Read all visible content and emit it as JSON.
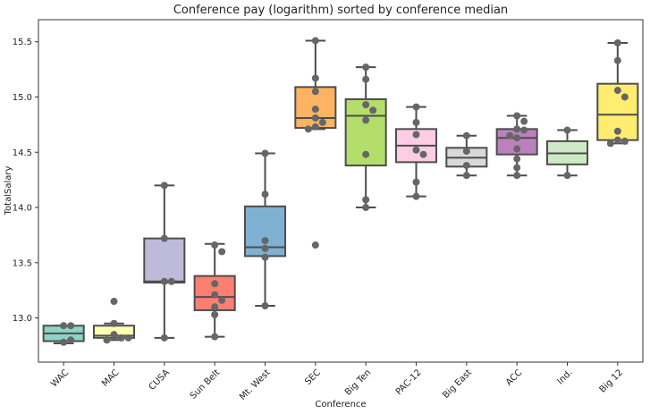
{
  "chart_data": {
    "type": "box",
    "title": "Conference pay (logarithm) sorted by conference median",
    "xlabel": "Conference",
    "ylabel": "TotalSalary",
    "ylim": [
      12.6,
      15.7
    ],
    "yticks": [
      13.0,
      13.5,
      14.0,
      14.5,
      15.0,
      15.5
    ],
    "ytick_labels": [
      "13.0",
      "13.5",
      "14.0",
      "14.5",
      "15.0",
      "15.5"
    ],
    "grid": false,
    "categories": [
      "WAC",
      "MAC",
      "CUSA",
      "Sun Belt",
      "Mt. West",
      "SEC",
      "Big Ten",
      "PAC-12",
      "Big East",
      "ACC",
      "Ind.",
      "Big 12"
    ],
    "boxes": [
      {
        "category": "WAC",
        "color": "#8dd3c7",
        "q1": 12.79,
        "median": 12.86,
        "q3": 12.93,
        "whisker_low": 12.77,
        "whisker_high": 12.93,
        "outliers": [],
        "points": [
          12.93,
          12.93,
          12.78,
          12.8
        ]
      },
      {
        "category": "MAC",
        "color": "#ffffb3",
        "q1": 12.82,
        "median": 12.84,
        "q3": 12.93,
        "whisker_low": 12.8,
        "whisker_high": 12.95,
        "outliers": [
          13.15
        ],
        "points": [
          12.95,
          12.85,
          12.82,
          12.8,
          12.82,
          13.15
        ]
      },
      {
        "category": "CUSA",
        "color": "#bebada",
        "q1": 13.32,
        "median": 13.33,
        "q3": 13.72,
        "whisker_low": 12.82,
        "whisker_high": 14.2,
        "outliers": [],
        "points": [
          14.2,
          13.72,
          13.33,
          13.33,
          12.82
        ]
      },
      {
        "category": "Sun Belt",
        "color": "#fb8072",
        "q1": 13.07,
        "median": 13.19,
        "q3": 13.38,
        "whisker_low": 12.83,
        "whisker_high": 13.67,
        "outliers": [],
        "points": [
          13.66,
          13.6,
          13.31,
          13.21,
          13.16,
          13.1,
          13.03,
          12.83
        ]
      },
      {
        "category": "Mt. West",
        "color": "#80b1d3",
        "q1": 13.56,
        "median": 13.64,
        "q3": 14.01,
        "whisker_low": 13.11,
        "whisker_high": 14.49,
        "outliers": [],
        "points": [
          14.49,
          14.12,
          13.7,
          13.63,
          13.55,
          13.11
        ]
      },
      {
        "category": "SEC",
        "color": "#fdb462",
        "q1": 14.72,
        "median": 14.81,
        "q3": 15.09,
        "whisker_low": 14.71,
        "whisker_high": 15.51,
        "outliers": [
          13.66
        ],
        "points": [
          15.51,
          15.17,
          15.05,
          14.89,
          14.81,
          14.77,
          14.73,
          14.71,
          13.66
        ]
      },
      {
        "category": "Big Ten",
        "color": "#b3de69",
        "q1": 14.38,
        "median": 14.83,
        "q3": 14.98,
        "whisker_low": 14.0,
        "whisker_high": 15.27,
        "outliers": [],
        "points": [
          15.27,
          15.16,
          14.93,
          14.88,
          14.79,
          14.48,
          14.07,
          14.0
        ]
      },
      {
        "category": "PAC-12",
        "color": "#fccde5",
        "q1": 14.41,
        "median": 14.56,
        "q3": 14.71,
        "whisker_low": 14.1,
        "whisker_high": 14.91,
        "outliers": [],
        "points": [
          14.91,
          14.77,
          14.66,
          14.52,
          14.48,
          14.23,
          14.1
        ]
      },
      {
        "category": "Big East",
        "color": "#d9d9d9",
        "q1": 14.37,
        "median": 14.45,
        "q3": 14.54,
        "whisker_low": 14.29,
        "whisker_high": 14.65,
        "outliers": [],
        "points": [
          14.65,
          14.51,
          14.38,
          14.29
        ]
      },
      {
        "category": "ACC",
        "color": "#bc80bd",
        "q1": 14.48,
        "median": 14.63,
        "q3": 14.71,
        "whisker_low": 14.29,
        "whisker_high": 14.83,
        "outliers": [],
        "points": [
          14.83,
          14.78,
          14.71,
          14.7,
          14.65,
          14.63,
          14.53,
          14.44,
          14.36,
          14.29
        ]
      },
      {
        "category": "Ind.",
        "color": "#ccebc5",
        "q1": 14.39,
        "median": 14.49,
        "q3": 14.6,
        "whisker_low": 14.29,
        "whisker_high": 14.7,
        "outliers": [],
        "points": [
          14.7,
          14.29
        ]
      },
      {
        "category": "Big 12",
        "color": "#ffed6f",
        "q1": 14.61,
        "median": 14.84,
        "q3": 15.12,
        "whisker_low": 14.58,
        "whisker_high": 15.49,
        "outliers": [],
        "points": [
          15.49,
          15.33,
          15.06,
          15.0,
          14.69,
          14.61,
          14.6,
          14.58
        ]
      }
    ],
    "colors": {
      "line": "#4d4d4d",
      "point": "#666666",
      "frame": "#333333"
    }
  }
}
